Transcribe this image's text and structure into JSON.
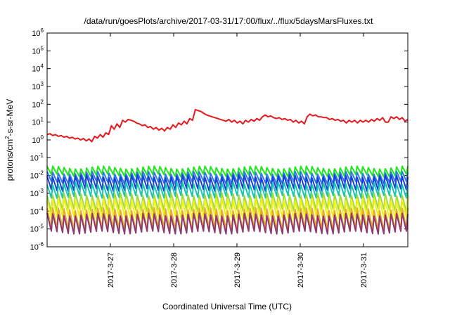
{
  "chart_data": {
    "type": "line",
    "title": "/data/run/goesPlots/archive/2017-03-31/17:00/flux/../flux/5daysMarsFluxes.txt",
    "xlabel": "Coordinated Universal Time (UTC)",
    "ylabel": {
      "base": "protons/cm",
      "sup": "2",
      "rest": "-s-sr-MeV"
    },
    "yscale": "log",
    "ylim_exp": [
      -6,
      6
    ],
    "y_ticks": [
      {
        "exp": -6
      },
      {
        "exp": -5
      },
      {
        "exp": -4
      },
      {
        "exp": -3
      },
      {
        "exp": -2
      },
      {
        "exp": -1
      },
      {
        "exp": 0
      },
      {
        "exp": 1
      },
      {
        "exp": 2
      },
      {
        "exp": 3
      },
      {
        "exp": 4
      },
      {
        "exp": 5
      },
      {
        "exp": 6
      }
    ],
    "tick_base": "10",
    "xlim": [
      0,
      5.7
    ],
    "x_ticks": [
      {
        "pos": 1,
        "label": "2017-3-27"
      },
      {
        "pos": 2,
        "label": "2017-3-28"
      },
      {
        "pos": 3,
        "label": "2017-3-29"
      },
      {
        "pos": 4,
        "label": "2017-3-30"
      },
      {
        "pos": 5,
        "label": "2017-3-31"
      }
    ],
    "grid": false,
    "legend": "none",
    "series": [
      {
        "color": "#e8191d",
        "log_values": [
          0.3,
          0.35,
          0.25,
          0.3,
          0.2,
          0.25,
          0.15,
          0.2,
          0.1,
          0.15,
          0.05,
          0.1,
          0.0,
          0.08,
          -0.05,
          0.05,
          -0.1,
          0.2,
          0.1,
          0.3,
          0.15,
          0.4,
          0.3,
          0.8,
          0.6,
          0.9,
          0.7,
          1.1,
          1.0,
          1.15,
          1.1,
          1.05,
          0.95,
          0.9,
          0.8,
          0.85,
          0.7,
          0.75,
          0.6,
          0.7,
          0.55,
          0.65,
          0.5,
          0.7,
          0.6,
          0.85,
          0.7,
          0.95,
          0.85,
          1.05,
          0.9,
          1.2,
          1.1,
          1.7,
          1.65,
          1.6,
          1.5,
          1.4,
          1.35,
          1.3,
          1.25,
          1.2,
          1.15,
          1.1,
          1.05,
          1.15,
          1.0,
          1.1,
          0.95,
          1.05,
          0.9,
          1.1,
          1.0,
          1.15,
          1.05,
          1.2,
          1.1,
          1.3,
          1.4,
          1.3,
          1.35,
          1.25,
          1.2,
          1.25,
          1.15,
          1.2,
          1.1,
          1.15,
          1.0,
          1.1,
          0.95,
          1.05,
          0.9,
          1.3,
          1.45,
          1.35,
          1.4,
          1.3,
          1.3,
          1.25,
          1.25,
          1.15,
          1.2,
          1.1,
          1.15,
          1.05,
          1.1,
          0.95,
          1.1,
          1.0,
          1.1,
          0.95,
          1.1,
          1.0,
          1.1,
          1.0,
          1.15,
          1.05,
          1.2,
          1.1,
          1.25,
          1.0,
          1.0,
          1.3,
          1.2,
          1.3,
          1.15,
          1.25,
          1.05,
          1.15
        ]
      },
      {
        "color": "#1ee81b",
        "base": -1.55,
        "amp": 0.45
      },
      {
        "color": "#2f7be8",
        "base": -1.85,
        "amp": 0.55
      },
      {
        "color": "#1a3fd6",
        "base": -2.05,
        "amp": 0.75
      },
      {
        "color": "#19c5b0",
        "base": -2.45,
        "amp": 0.75
      },
      {
        "color": "#9edb3a",
        "base": -3.05,
        "amp": 0.9
      },
      {
        "color": "#f2ef1a",
        "base": -3.35,
        "amp": 1.0
      },
      {
        "color": "#e8aa2a",
        "base": -3.9,
        "amp": 1.1
      },
      {
        "color": "#8e3a6e",
        "base": -4.2,
        "amp": 1.0
      }
    ],
    "cycles": 64
  }
}
